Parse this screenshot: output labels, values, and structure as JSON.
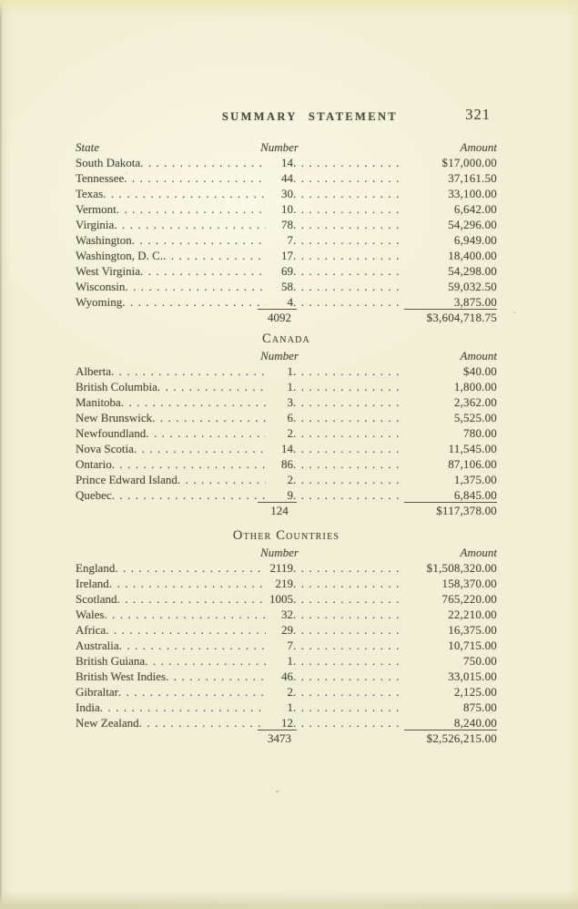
{
  "header": {
    "title": "SUMMARY STATEMENT",
    "page_number": "321"
  },
  "sections": [
    {
      "heading": null,
      "columns": {
        "state": "State",
        "number": "Number",
        "amount": "Amount"
      },
      "rows": [
        [
          "South Dakota",
          "14",
          "$17,000.00"
        ],
        [
          "Tennessee",
          "44",
          "37,161.50"
        ],
        [
          "Texas",
          "30",
          "33,100.00"
        ],
        [
          "Vermont",
          "10",
          "6,642.00"
        ],
        [
          "Virginia",
          "78",
          "54,296.00"
        ],
        [
          "Washington",
          "7",
          "6,949.00"
        ],
        [
          "Washington, D. C.",
          "17",
          "18,400.00"
        ],
        [
          "West Virginia",
          "69",
          "54,298.00"
        ],
        [
          "Wisconsin",
          "58",
          "59,032.50"
        ],
        [
          "Wyoming",
          "4",
          "3,875.00"
        ]
      ],
      "total": {
        "number": "4092",
        "amount": "$3,604,718.75"
      }
    },
    {
      "heading": "Canada",
      "columns": {
        "number": "Number",
        "amount": "Amount"
      },
      "rows": [
        [
          "Alberta",
          "1",
          "$40.00"
        ],
        [
          "British Columbia",
          "1",
          "1,800.00"
        ],
        [
          "Manitoba",
          "3",
          "2,362.00"
        ],
        [
          "New Brunswick",
          "6",
          "5,525.00"
        ],
        [
          "Newfoundland",
          "2",
          "780.00"
        ],
        [
          "Nova Scotia",
          "14",
          "11,545.00"
        ],
        [
          "Ontario",
          "86",
          "87,106.00"
        ],
        [
          "Prince Edward Island",
          "2",
          "1,375.00"
        ],
        [
          "Quebec",
          "9",
          "6,845.00"
        ]
      ],
      "total": {
        "number": "124",
        "amount": "$117,378.00"
      }
    },
    {
      "heading": "Other Countries",
      "columns": {
        "number": "Number",
        "amount": "Amount"
      },
      "rows": [
        [
          "England",
          "2119",
          "$1,508,320.00"
        ],
        [
          "Ireland",
          "219",
          "158,370.00"
        ],
        [
          "Scotland",
          "1005",
          "765,220.00"
        ],
        [
          "Wales",
          "32",
          "22,210.00"
        ],
        [
          "Africa",
          "29",
          "16,375.00"
        ],
        [
          "Australia",
          "7",
          "10,715.00"
        ],
        [
          "British Guiana",
          "1",
          "750.00"
        ],
        [
          "British West Indies",
          "46",
          "33,015.00"
        ],
        [
          "Gibraltar",
          "2",
          "2,125.00"
        ],
        [
          "India",
          "1",
          "875.00"
        ],
        [
          "New Zealand",
          "12",
          "8,240.00"
        ]
      ],
      "total": {
        "number": "3473",
        "amount": "$2,526,215.00"
      }
    }
  ]
}
